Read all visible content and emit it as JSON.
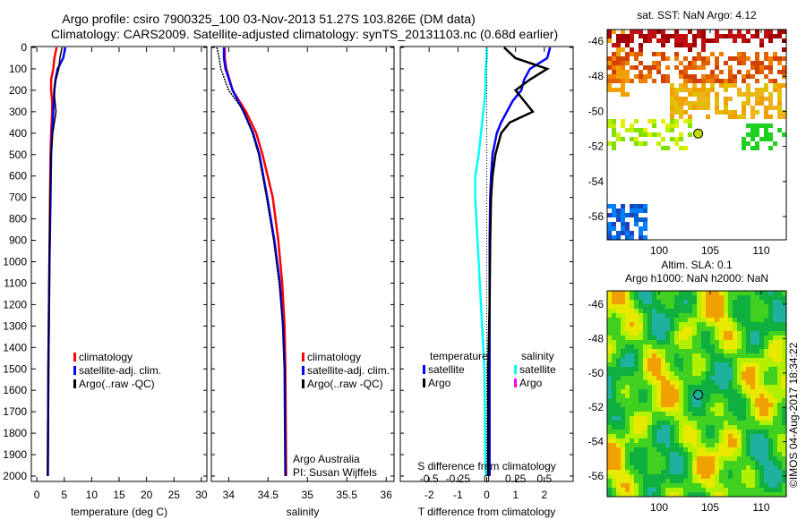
{
  "title_line1": "Argo profile: csiro 7900325_100 03-Nov-2013 51.27S 103.826E (DM data)",
  "title_line2": "Climatology: CARS2009. Satellite-adjusted climatology: synTS_20131103.nc (0.68d earlier)",
  "colors": {
    "climatology": "#ff0000",
    "satellite": "#0000ff",
    "argo": "#000000",
    "s_satellite": "#00ffff",
    "s_argo": "#ff00ff"
  },
  "chart_data": [
    {
      "type": "line",
      "xlabel": "temperature (deg C)",
      "xlim": [
        -1,
        31
      ],
      "ylim": [
        2050,
        0
      ],
      "xticks": [
        "0",
        "5",
        "10",
        "15",
        "20",
        "25",
        "30"
      ],
      "xtick_values": [
        0,
        5,
        10,
        15,
        20,
        25,
        30
      ],
      "yticks": [
        "0",
        "100",
        "200",
        "300",
        "400",
        "500",
        "600",
        "700",
        "800",
        "900",
        "1000",
        "1100",
        "1200",
        "1300",
        "1400",
        "1500",
        "1600",
        "1700",
        "1800",
        "1900",
        "2000"
      ],
      "legend": [
        "climatology",
        "satellite-adj. clim.",
        "Argo(..raw -QC)"
      ],
      "depth": [
        0,
        50,
        100,
        150,
        200,
        250,
        300,
        400,
        500,
        700,
        1000,
        1500,
        2000
      ],
      "series": [
        {
          "name": "climatology",
          "values": [
            3.6,
            3.2,
            3.0,
            2.6,
            2.6,
            2.8,
            2.8,
            2.6,
            2.5,
            2.4,
            2.3,
            2.1,
            2.0
          ]
        },
        {
          "name": "satellite-adj. clim.",
          "values": [
            5.2,
            4.8,
            3.8,
            3.4,
            3.2,
            3.1,
            3.0,
            2.8,
            2.6,
            2.5,
            2.3,
            2.1,
            2.0
          ]
        },
        {
          "name": "Argo(..raw -QC)",
          "values": [
            4.6,
            4.2,
            4.0,
            3.5,
            3.1,
            3.3,
            3.5,
            2.9,
            2.6,
            2.4,
            2.3,
            2.1,
            2.0
          ]
        }
      ]
    },
    {
      "type": "line",
      "xlabel": "salinity",
      "xlim": [
        33.78,
        36.1
      ],
      "ylim": [
        2050,
        0
      ],
      "xticks": [
        "34",
        "34.5",
        "35",
        "35.5",
        "36"
      ],
      "xtick_values": [
        34,
        34.5,
        35,
        35.5,
        36
      ],
      "legend": [
        "climatology",
        "satellite-adj. clim.",
        "Argo(..raw -QC)"
      ],
      "annotation": [
        "Argo Australia",
        "PI: Susan Wijffels"
      ],
      "depth": [
        0,
        50,
        100,
        200,
        300,
        400,
        500,
        700,
        900,
        1100,
        1300,
        1500,
        2000
      ],
      "series": [
        {
          "name": "climatology",
          "values": [
            33.95,
            33.95,
            33.97,
            34.05,
            34.22,
            34.35,
            34.43,
            34.56,
            34.63,
            34.68,
            34.71,
            34.72,
            34.73
          ]
        },
        {
          "name": "satellite-adj. clim.",
          "values": [
            33.94,
            33.94,
            33.96,
            34.05,
            34.19,
            34.31,
            34.39,
            34.49,
            34.58,
            34.65,
            34.69,
            34.71,
            34.72
          ]
        },
        {
          "name": "Argo(..raw -QC)",
          "values": [
            33.85,
            33.88,
            33.9,
            34.0,
            34.2,
            34.3,
            34.38,
            34.48,
            34.57,
            34.64,
            34.69,
            34.71,
            34.72
          ]
        }
      ]
    },
    {
      "type": "line",
      "xlabel": "T difference from climatology",
      "x2label": "S difference from climatology",
      "xlim": [
        -3,
        3
      ],
      "x2lim": [
        -0.75,
        0.75
      ],
      "ylim": [
        2050,
        0
      ],
      "xticks": [
        "-2",
        "-1",
        "0",
        "1",
        "2"
      ],
      "xtick_values": [
        -2,
        -1,
        0,
        1,
        2
      ],
      "x2ticks": [
        "-0.5",
        "-0.25",
        "0",
        "0.25",
        "0.5"
      ],
      "x2tick_values": [
        -0.5,
        -0.25,
        0,
        0.25,
        0.5
      ],
      "legend_temperature_title": "temperature",
      "legend_salinity_title": "salinity",
      "legend": [
        "satellite",
        "Argo",
        "satellite",
        "Argo"
      ],
      "depth": [
        0,
        50,
        100,
        150,
        200,
        250,
        300,
        350,
        400,
        500,
        600,
        700,
        900,
        1200,
        1500,
        2000
      ],
      "series": [
        {
          "name": "T satellite",
          "axis": "T",
          "values": [
            2.2,
            2.1,
            1.5,
            1.3,
            1.2,
            0.9,
            0.7,
            0.5,
            0.35,
            0.2,
            0.15,
            0.12,
            0.1,
            0.1,
            0.1,
            0.1
          ]
        },
        {
          "name": "T Argo",
          "axis": "T",
          "values": [
            0.6,
            1.0,
            2.1,
            1.5,
            1.0,
            1.3,
            1.6,
            0.8,
            0.5,
            0.3,
            0.2,
            0.15,
            0.12,
            0.1,
            0.05,
            0.05
          ]
        },
        {
          "name": "S satellite",
          "axis": "S",
          "values": [
            0,
            0.0,
            -0.01,
            -0.01,
            -0.01,
            -0.02,
            -0.03,
            -0.04,
            -0.05,
            -0.07,
            -0.1,
            -0.1,
            -0.08,
            -0.05,
            -0.02,
            -0.01
          ]
        }
      ]
    }
  ],
  "map_sst": {
    "title": "sat. SST: NaN Argo: 4.12",
    "xticks": [
      "100",
      "105",
      "110"
    ],
    "yticks": [
      "-46",
      "-48",
      "-50",
      "-52",
      "-54",
      "-56"
    ]
  },
  "map_sla": {
    "title_line1": "Altim. SLA: 0.1",
    "title_line2": "Argo h1000: NaN h2000: NaN",
    "xticks": [
      "100",
      "105",
      "110"
    ],
    "yticks": [
      "-46",
      "-48",
      "-50",
      "-52",
      "-54",
      "-56"
    ]
  },
  "float_position": {
    "lon": 103.826,
    "lat": -51.27
  },
  "credit": "©IMOS 04-Aug-2017 18:34:22"
}
